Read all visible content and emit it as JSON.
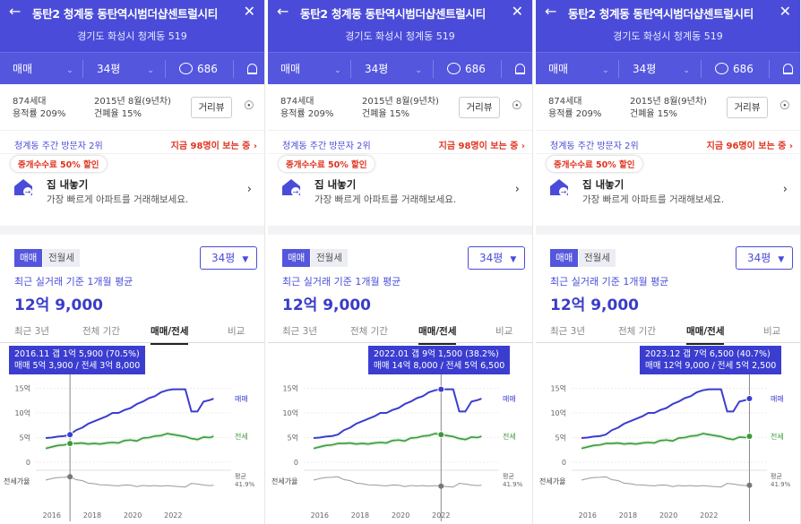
{
  "header": {
    "title": "동탄2 청계동 동탄역시범더샵센트럴시티",
    "address": "경기도 화성시 청계동 519"
  },
  "selectors": {
    "trade_type": "매매",
    "size": "34평",
    "comment_count": "686"
  },
  "info": {
    "households": "874세대",
    "floor_area_ratio": "용적률 209%",
    "built": "2015년 8월(9년차)",
    "building_coverage": "건폐율 15%",
    "street_view_button": "거리뷰"
  },
  "visitors": {
    "rank_text": "청계동 주간 방문자 2위"
  },
  "promo": {
    "badge": "중개수수료 50% 할인",
    "title": "집 내놓기",
    "subtitle": "가장 빠르게 아파트를 거래해보세요."
  },
  "price_tabs": {
    "sale": "매매",
    "jeonse": "전월세",
    "size_dropdown": "34평"
  },
  "average": {
    "label": "최근 실거래 기준 1개월 평균",
    "value": "12억 9,000"
  },
  "range_tabs": [
    "최근 3년",
    "전체 기간",
    "매매/전세",
    "비교"
  ],
  "chart_labels": {
    "sale": "매매",
    "jeonse": "전세",
    "ratio": "전세가율",
    "avg": "평균",
    "avg_value": "41.9%"
  },
  "colors": {
    "brand": "#4a4cd9",
    "sale_line": "#3b3dd0",
    "jeonse_line": "#3a9a3a",
    "alert": "#e0331f"
  },
  "panels": [
    {
      "viewers": "지금 98명이 보는 중",
      "tooltip_line1": "2016.11  갭 1억 5,900 (70.5%)",
      "tooltip_line2": "매매 5억 3,900 / 전세 3억 8,000"
    },
    {
      "viewers": "지금 98명이 보는 중",
      "tooltip_line1": "2022.01  갭 9억 1,500 (38.2%)",
      "tooltip_line2": "매매 14억 8,000 / 전세 5억 6,500"
    },
    {
      "viewers": "지금 96명이 보는 중",
      "tooltip_line1": "2023.12  갭 7억 6,500 (40.7%)",
      "tooltip_line2": "매매 12억 9,000 / 전세 5억 2,500"
    }
  ],
  "chart_data": {
    "type": "line",
    "x": [
      2015.7,
      2016.0,
      2016.3,
      2016.6,
      2016.9,
      2017.2,
      2017.5,
      2017.8,
      2018.1,
      2018.4,
      2018.7,
      2019.0,
      2019.3,
      2019.6,
      2019.9,
      2020.2,
      2020.5,
      2020.8,
      2021.1,
      2021.4,
      2021.7,
      2022.0,
      2022.3,
      2022.6,
      2022.9,
      2023.2,
      2023.5,
      2023.8,
      2024.0
    ],
    "x_ticks": [
      "2016",
      "2018",
      "2020",
      "2022"
    ],
    "y_ticks": [
      "15억",
      "10억",
      "5억",
      "0"
    ],
    "ylim": [
      0,
      16
    ],
    "series": [
      {
        "name": "매매",
        "values": [
          4.9,
          5.0,
          5.2,
          5.3,
          5.6,
          6.5,
          7.0,
          7.8,
          8.3,
          8.8,
          9.3,
          10.0,
          10.0,
          10.6,
          11.0,
          11.8,
          12.3,
          13.0,
          13.4,
          14.2,
          14.6,
          14.8,
          14.8,
          14.8,
          10.3,
          10.3,
          12.3,
          12.6,
          12.9
        ]
      },
      {
        "name": "전세",
        "values": [
          2.8,
          3.1,
          3.4,
          3.5,
          3.8,
          3.8,
          3.9,
          3.7,
          3.8,
          3.7,
          3.9,
          4.0,
          3.9,
          4.4,
          4.5,
          4.3,
          4.9,
          5.0,
          5.3,
          5.4,
          5.8,
          5.6,
          5.4,
          5.2,
          4.8,
          4.6,
          5.1,
          5.0,
          5.25
        ]
      }
    ]
  }
}
